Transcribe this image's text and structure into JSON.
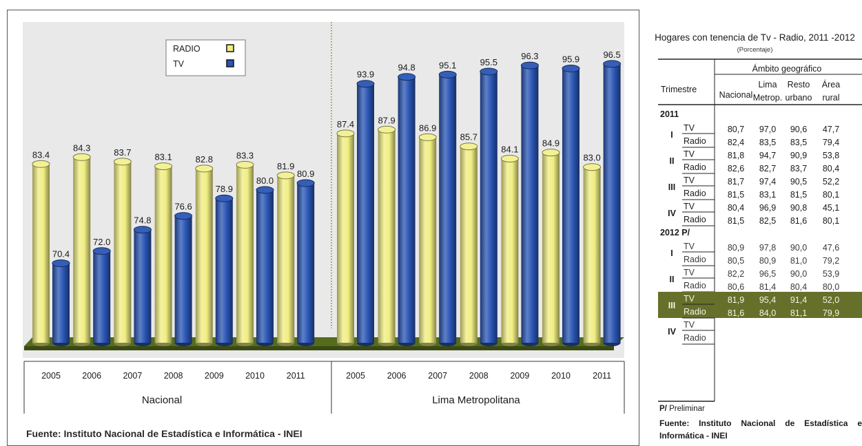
{
  "chart_data": {
    "type": "bar",
    "groups": [
      {
        "name": "Nacional",
        "categories": [
          "2005",
          "2006",
          "2007",
          "2008",
          "2009",
          "2010",
          "2011"
        ],
        "series": [
          {
            "name": "RADIO",
            "values": [
              83.4,
              84.3,
              83.7,
              83.1,
              82.8,
              83.3,
              81.9
            ],
            "labels": [
              "83.4",
              "84.3",
              "83.7",
              "83.1",
              "82.8",
              "83.3",
              "81.9"
            ]
          },
          {
            "name": "TV",
            "values": [
              70.4,
              72.0,
              74.8,
              76.6,
              78.9,
              80.0,
              80.9
            ],
            "labels": [
              "70.4",
              "72.0",
              "74.8",
              "76.6",
              "78.9",
              "80.0",
              "80.9"
            ]
          }
        ]
      },
      {
        "name": "Lima Metropolitana",
        "categories": [
          "2005",
          "2006",
          "2007",
          "2008",
          "2009",
          "2010",
          "2011"
        ],
        "series": [
          {
            "name": "RADIO",
            "values": [
              87.4,
              87.9,
              86.9,
              85.7,
              84.1,
              84.9,
              83.0
            ],
            "labels": [
              "87.4",
              "87.9",
              "86.9",
              "85.7",
              "84.1",
              "84.9",
              "83.0"
            ]
          },
          {
            "name": "TV",
            "values": [
              93.9,
              94.8,
              95.1,
              95.5,
              96.3,
              95.9,
              96.5
            ],
            "labels": [
              "93.9",
              "94.8",
              "95.1",
              "95.5",
              "96.3",
              "95.9",
              "96.5"
            ]
          }
        ]
      }
    ],
    "legend": [
      {
        "label": "RADIO",
        "color": "#f0ee82"
      },
      {
        "label": "TV",
        "color": "#2a55b4"
      }
    ],
    "legend_position": "top-left"
  },
  "colors": {
    "radio": "#f0ee82",
    "tv": "#2a55b4",
    "plot_bg": "#e9e9e9",
    "floor": "#556b1e",
    "highlight": "#66702a"
  },
  "chart_source": "Fuente: Instituto Nacional de Estadística e Informática - INEI",
  "table": {
    "title": "Hogares con tenencia de Tv - Radio, 2011 -2012",
    "subtitle": "(Porcentaje)",
    "header_trimestre": "Trimestre",
    "header_ambito": "Ámbito geográfico",
    "columns": [
      [
        "Nacional"
      ],
      [
        "Lima",
        "Metrop."
      ],
      [
        "Resto",
        "urbano"
      ],
      [
        "Área",
        "rural"
      ]
    ],
    "sections": [
      {
        "year": "2011",
        "quarters": [
          {
            "q": "I",
            "rows": [
              {
                "type": "TV",
                "vals": [
                  "80,7",
                  "97,0",
                  "90,6",
                  "47,7"
                ]
              },
              {
                "type": "Radio",
                "vals": [
                  "82,4",
                  "83,5",
                  "83,5",
                  "79,4"
                ]
              }
            ]
          },
          {
            "q": "II",
            "rows": [
              {
                "type": "TV",
                "vals": [
                  "81,8",
                  "94,7",
                  "90,9",
                  "53,8"
                ]
              },
              {
                "type": "Radio",
                "vals": [
                  "82,6",
                  "82,7",
                  "83,7",
                  "80,4"
                ]
              }
            ]
          },
          {
            "q": "III",
            "rows": [
              {
                "type": "TV",
                "vals": [
                  "81,7",
                  "97,4",
                  "90,5",
                  "52,2"
                ]
              },
              {
                "type": "Radio",
                "vals": [
                  "81,5",
                  "83,1",
                  "81,5",
                  "80,1"
                ]
              }
            ]
          },
          {
            "q": "IV",
            "rows": [
              {
                "type": "TV",
                "vals": [
                  "80,4",
                  "96,9",
                  "90,8",
                  "45,1"
                ]
              },
              {
                "type": "Radio",
                "vals": [
                  "81,5",
                  "82,5",
                  "81,6",
                  "80,1"
                ]
              }
            ]
          }
        ]
      },
      {
        "year": "2012 P/",
        "quarters": [
          {
            "q": "I",
            "rows": [
              {
                "type": "TV",
                "vals": [
                  "80,9",
                  "97,8",
                  "90,0",
                  "47,6"
                ]
              },
              {
                "type": "Radio",
                "vals": [
                  "80,5",
                  "80,9",
                  "81,0",
                  "79,2"
                ]
              }
            ]
          },
          {
            "q": "II",
            "rows": [
              {
                "type": "TV",
                "vals": [
                  "82,2",
                  "96,5",
                  "90,0",
                  "53,9"
                ]
              },
              {
                "type": "Radio",
                "vals": [
                  "80,6",
                  "81,4",
                  "80,4",
                  "80,0"
                ]
              }
            ]
          },
          {
            "q": "III",
            "highlight": true,
            "rows": [
              {
                "type": "TV",
                "vals": [
                  "81,9",
                  "95,4",
                  "91,4",
                  "52,0"
                ]
              },
              {
                "type": "Radio",
                "vals": [
                  "81,6",
                  "84,0",
                  "81,1",
                  "79,9"
                ]
              }
            ]
          },
          {
            "q": "IV",
            "rows": [
              {
                "type": "TV",
                "vals": [
                  "",
                  "",
                  "",
                  ""
                ]
              },
              {
                "type": "Radio",
                "vals": [
                  "",
                  "",
                  "",
                  ""
                ]
              }
            ]
          }
        ]
      }
    ],
    "footnote_mark": "P/",
    "footnote_text": " Preliminar",
    "source": "Fuente: Instituto Nacional de Estadística e Informática - INEI"
  }
}
